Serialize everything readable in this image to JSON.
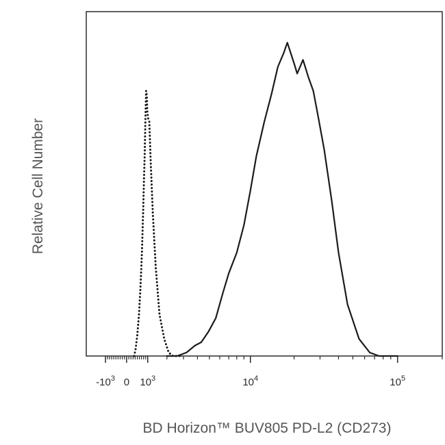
{
  "chart_data": {
    "type": "line",
    "title": "",
    "xlabel": "BD Horizon™ BUV805 PD-L2 (CD273)",
    "ylabel": "Relative Cell Number",
    "x_scale": "biexponential",
    "xlim": [
      -2000,
      200000
    ],
    "ylim": [
      0,
      100
    ],
    "grid": false,
    "x_ticks": [
      {
        "value": -1000,
        "base": "-10",
        "exp": "3"
      },
      {
        "value": 0,
        "base": "0",
        "exp": ""
      },
      {
        "value": 1000,
        "base": "10",
        "exp": "3"
      },
      {
        "value": 10000,
        "base": "10",
        "exp": "4"
      },
      {
        "value": 100000,
        "base": "10",
        "exp": "5"
      }
    ],
    "series": [
      {
        "style": "dotted",
        "x": [
          350,
          420,
          500,
          580,
          650,
          720,
          780,
          820,
          850,
          870,
          900,
          920,
          950,
          980,
          1020,
          1080,
          1150,
          1250,
          1400,
          1600,
          1850,
          2100,
          2350,
          2600,
          2800
        ],
        "y": [
          0,
          2,
          6,
          12,
          20,
          30,
          42,
          52,
          58,
          64,
          72,
          77,
          76,
          71,
          69,
          68,
          56,
          42,
          26,
          12,
          5,
          1,
          0,
          0,
          0
        ]
      },
      {
        "style": "solid",
        "x": [
          2000,
          2600,
          3200,
          3800,
          4300,
          4900,
          5600,
          6300,
          7000,
          8000,
          9000,
          10000,
          11000,
          12500,
          14000,
          15500,
          17000,
          18000,
          20000,
          21000,
          23000,
          25000,
          27000,
          29000,
          32000,
          36000,
          40000,
          46000,
          55000,
          65000,
          75000,
          85000,
          100000
        ],
        "y": [
          0,
          0,
          1,
          3,
          4,
          7,
          11,
          18,
          24,
          30,
          38,
          48,
          58,
          68,
          76,
          84,
          88,
          91,
          85,
          82,
          86,
          81,
          77,
          70,
          60,
          45,
          30,
          15,
          5,
          1,
          0,
          0,
          0
        ]
      }
    ]
  }
}
